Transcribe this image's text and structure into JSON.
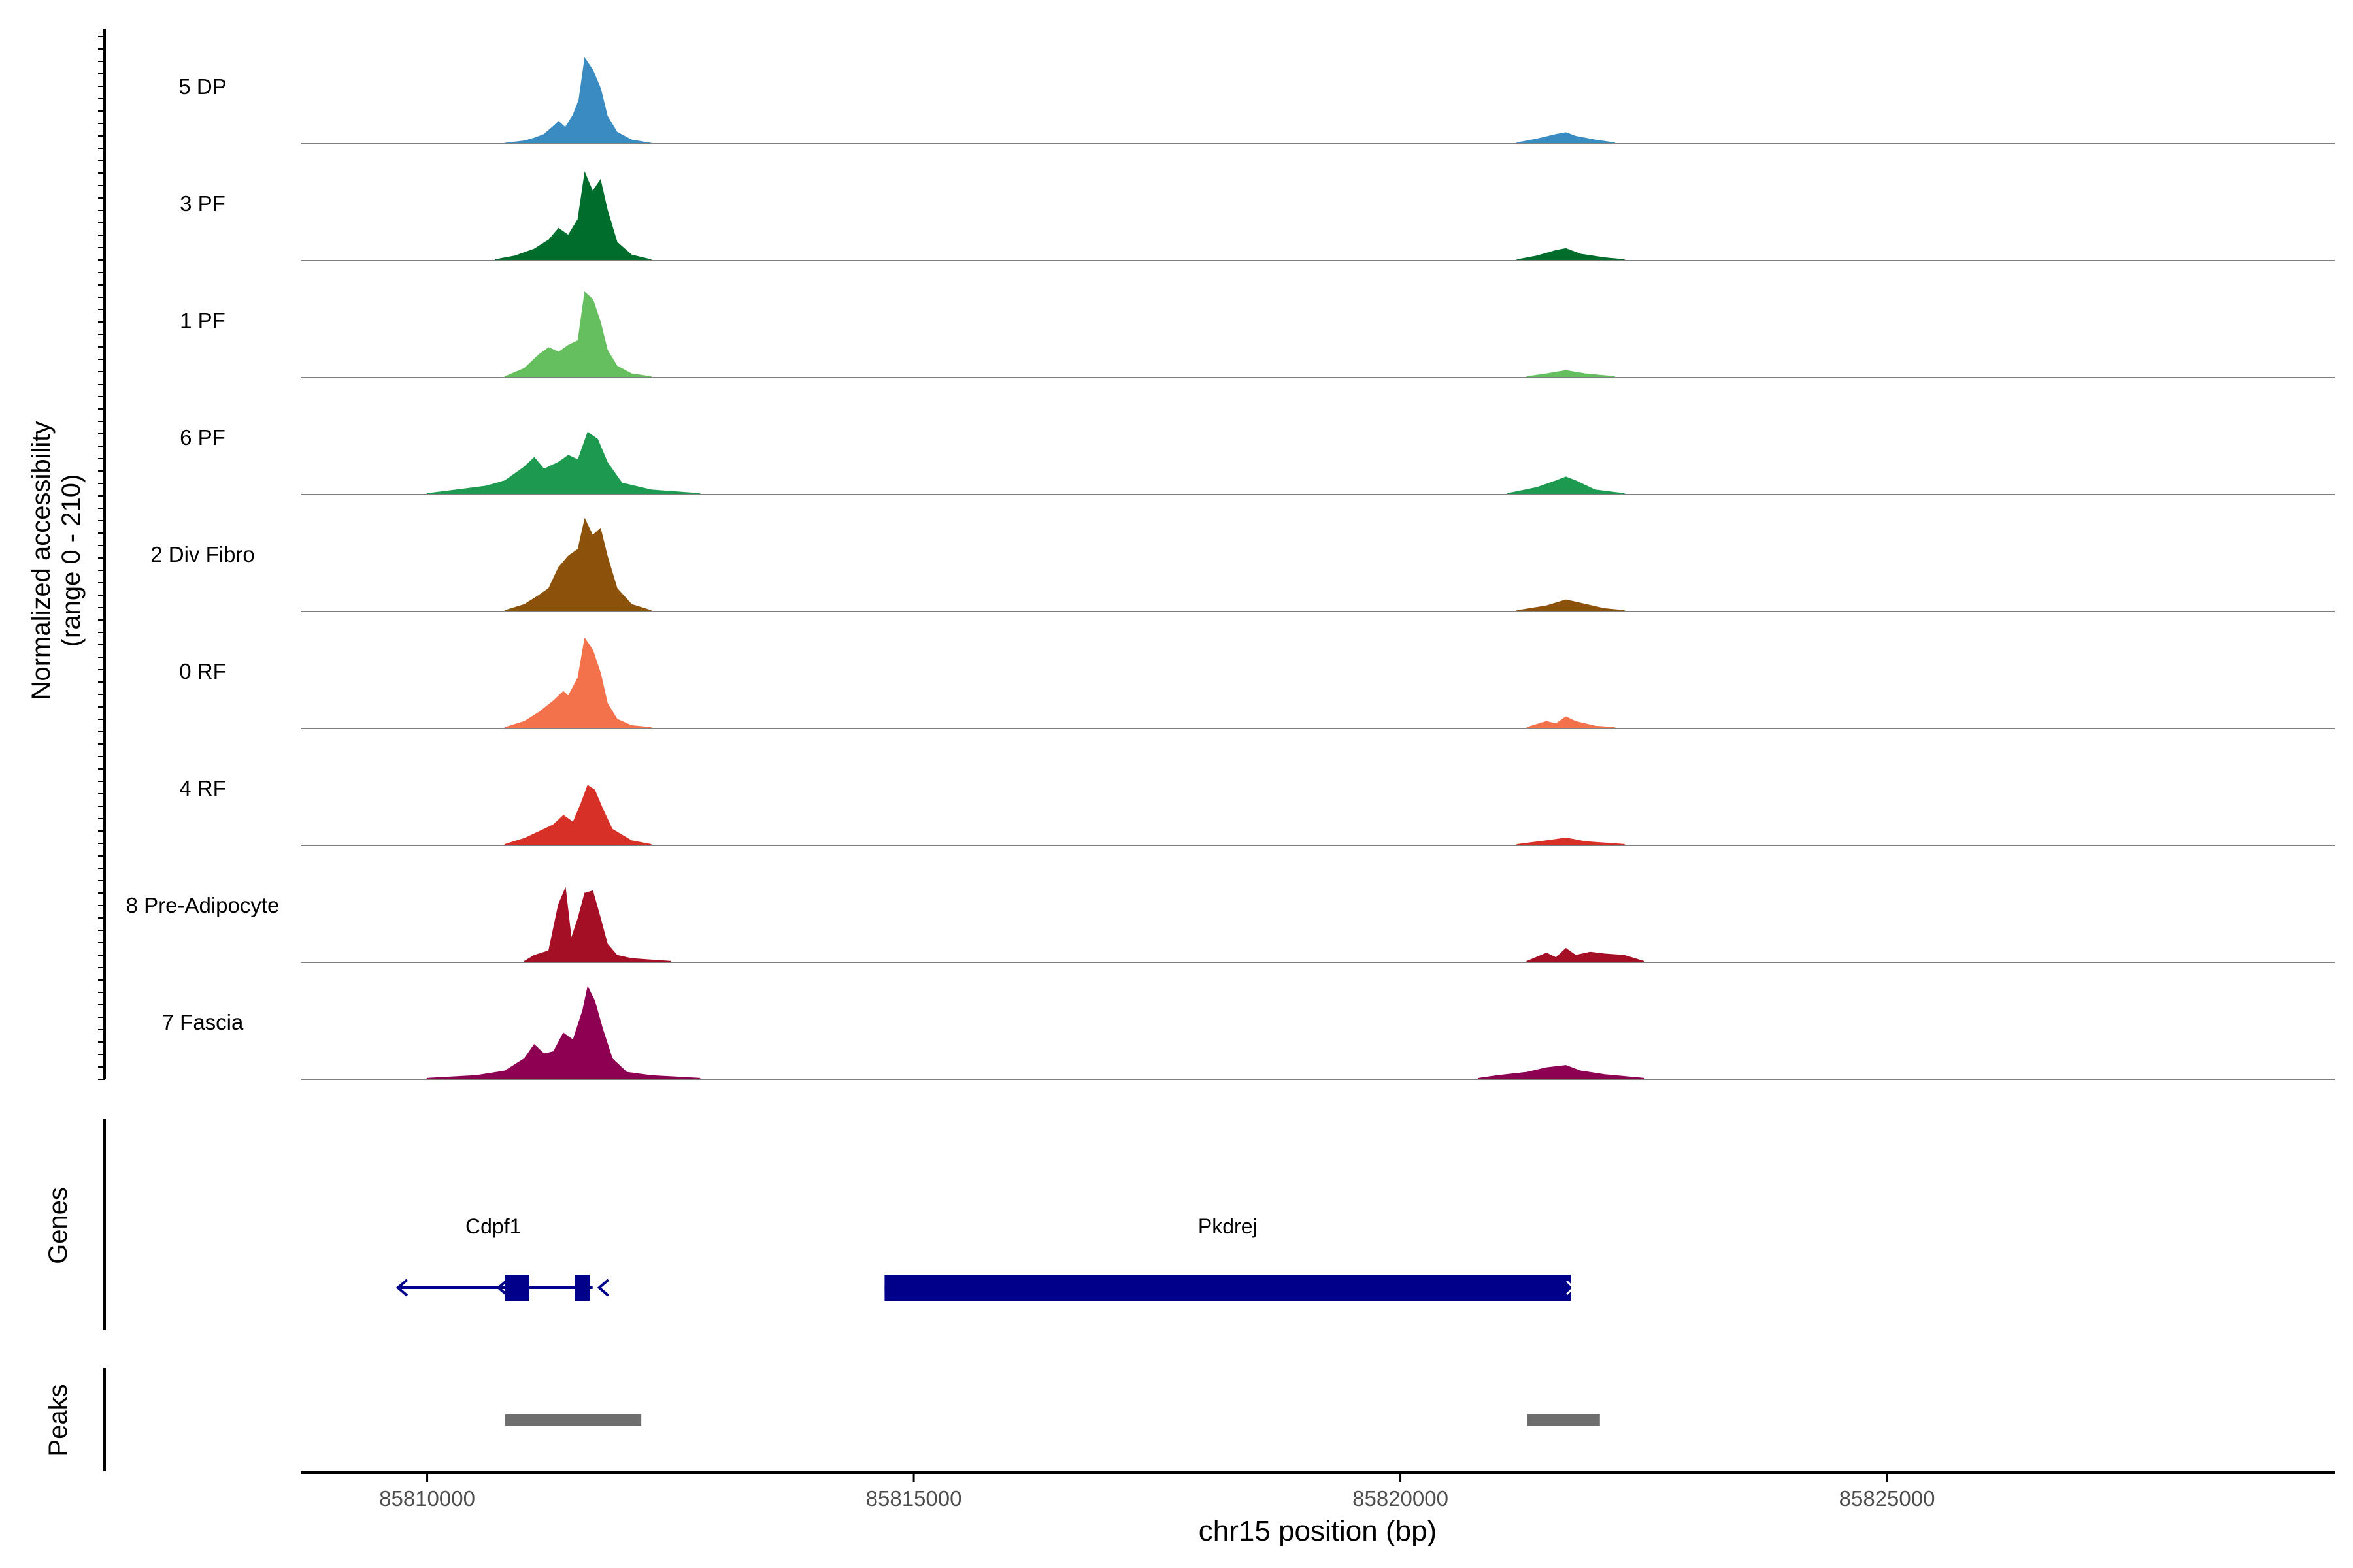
{
  "chart_data": {
    "type": "area",
    "title": "",
    "xlabel": "chr15 position (bp)",
    "ylabel_line1": "Normalized accessibility",
    "ylabel_line2": "(range 0 - 210)",
    "xlim": [
      85808700,
      85829600
    ],
    "ylim": [
      0,
      210
    ],
    "x_ticks": [
      85810000,
      85815000,
      85820000,
      85825000
    ],
    "x_tick_labels": [
      "85810000",
      "85815000",
      "85820000",
      "85825000"
    ],
    "series": [
      {
        "name": "5 DP",
        "color": "#3a8bc2",
        "peaks": [
          {
            "start": 85810800,
            "end": 85812300,
            "points": [
              [
                85810800,
                1
              ],
              [
                85811000,
                6
              ],
              [
                85811100,
                12
              ],
              [
                85811200,
                20
              ],
              [
                85811300,
                38
              ],
              [
                85811350,
                48
              ],
              [
                85811420,
                35
              ],
              [
                85811500,
                62
              ],
              [
                85811560,
                95
              ],
              [
                85811620,
                185
              ],
              [
                85811700,
                160
              ],
              [
                85811780,
                120
              ],
              [
                85811850,
                60
              ],
              [
                85811950,
                25
              ],
              [
                85812100,
                8
              ],
              [
                85812300,
                1
              ]
            ]
          },
          {
            "start": 85821200,
            "end": 85822200,
            "points": [
              [
                85821200,
                2
              ],
              [
                85821400,
                10
              ],
              [
                85821600,
                20
              ],
              [
                85821700,
                24
              ],
              [
                85821800,
                16
              ],
              [
                85822000,
                8
              ],
              [
                85822200,
                2
              ]
            ]
          }
        ]
      },
      {
        "name": "3 PF",
        "color": "#006d2c",
        "peaks": [
          {
            "start": 85810700,
            "end": 85812300,
            "points": [
              [
                85810700,
                2
              ],
              [
                85810900,
                10
              ],
              [
                85811100,
                25
              ],
              [
                85811250,
                45
              ],
              [
                85811350,
                70
              ],
              [
                85811450,
                55
              ],
              [
                85811550,
                90
              ],
              [
                85811620,
                190
              ],
              [
                85811700,
                150
              ],
              [
                85811780,
                175
              ],
              [
                85811850,
                110
              ],
              [
                85811950,
                40
              ],
              [
                85812100,
                12
              ],
              [
                85812300,
                2
              ]
            ]
          },
          {
            "start": 85821200,
            "end": 85822300,
            "points": [
              [
                85821200,
                2
              ],
              [
                85821400,
                10
              ],
              [
                85821600,
                22
              ],
              [
                85821700,
                26
              ],
              [
                85821850,
                14
              ],
              [
                85822100,
                6
              ],
              [
                85822300,
                2
              ]
            ]
          }
        ]
      },
      {
        "name": "1 PF",
        "color": "#66bf5f",
        "peaks": [
          {
            "start": 85810800,
            "end": 85812300,
            "points": [
              [
                85810800,
                2
              ],
              [
                85811000,
                20
              ],
              [
                85811150,
                50
              ],
              [
                85811250,
                65
              ],
              [
                85811350,
                55
              ],
              [
                85811450,
                70
              ],
              [
                85811550,
                80
              ],
              [
                85811620,
                185
              ],
              [
                85811700,
                170
              ],
              [
                85811780,
                120
              ],
              [
                85811850,
                60
              ],
              [
                85811950,
                25
              ],
              [
                85812100,
                8
              ],
              [
                85812300,
                2
              ]
            ]
          },
          {
            "start": 85821300,
            "end": 85822200,
            "points": [
              [
                85821300,
                2
              ],
              [
                85821500,
                8
              ],
              [
                85821700,
                15
              ],
              [
                85821900,
                8
              ],
              [
                85822200,
                2
              ]
            ]
          }
        ]
      },
      {
        "name": "6 PF",
        "color": "#1d9a4f",
        "peaks": [
          {
            "start": 85810000,
            "end": 85812800,
            "points": [
              [
                85810000,
                2
              ],
              [
                85810300,
                10
              ],
              [
                85810600,
                18
              ],
              [
                85810800,
                30
              ],
              [
                85811000,
                60
              ],
              [
                85811100,
                80
              ],
              [
                85811200,
                55
              ],
              [
                85811350,
                70
              ],
              [
                85811450,
                85
              ],
              [
                85811550,
                75
              ],
              [
                85811650,
                135
              ],
              [
                85811750,
                120
              ],
              [
                85811850,
                70
              ],
              [
                85812000,
                25
              ],
              [
                85812300,
                10
              ],
              [
                85812800,
                2
              ]
            ]
          },
          {
            "start": 85821100,
            "end": 85822300,
            "points": [
              [
                85821100,
                2
              ],
              [
                85821400,
                15
              ],
              [
                85821600,
                30
              ],
              [
                85821700,
                38
              ],
              [
                85821800,
                30
              ],
              [
                85822000,
                10
              ],
              [
                85822300,
                2
              ]
            ]
          }
        ]
      },
      {
        "name": "2 Div Fibro",
        "color": "#8c510a",
        "peaks": [
          {
            "start": 85810800,
            "end": 85812300,
            "points": [
              [
                85810800,
                2
              ],
              [
                85811000,
                15
              ],
              [
                85811150,
                35
              ],
              [
                85811250,
                50
              ],
              [
                85811350,
                95
              ],
              [
                85811450,
                120
              ],
              [
                85811550,
                135
              ],
              [
                85811620,
                200
              ],
              [
                85811700,
                165
              ],
              [
                85811780,
                180
              ],
              [
                85811850,
                120
              ],
              [
                85811950,
                50
              ],
              [
                85812100,
                15
              ],
              [
                85812300,
                2
              ]
            ]
          },
          {
            "start": 85821200,
            "end": 85822300,
            "points": [
              [
                85821200,
                2
              ],
              [
                85821500,
                12
              ],
              [
                85821700,
                25
              ],
              [
                85821850,
                18
              ],
              [
                85822100,
                6
              ],
              [
                85822300,
                2
              ]
            ]
          }
        ]
      },
      {
        "name": "0 RF",
        "color": "#f3714b",
        "peaks": [
          {
            "start": 85810800,
            "end": 85812300,
            "points": [
              [
                85810800,
                2
              ],
              [
                85811000,
                15
              ],
              [
                85811150,
                35
              ],
              [
                85811300,
                60
              ],
              [
                85811400,
                80
              ],
              [
                85811450,
                70
              ],
              [
                85811550,
                110
              ],
              [
                85811620,
                195
              ],
              [
                85811700,
                170
              ],
              [
                85811780,
                120
              ],
              [
                85811850,
                55
              ],
              [
                85811950,
                20
              ],
              [
                85812100,
                6
              ],
              [
                85812300,
                2
              ]
            ]
          },
          {
            "start": 85821300,
            "end": 85822200,
            "points": [
              [
                85821300,
                2
              ],
              [
                85821500,
                15
              ],
              [
                85821600,
                10
              ],
              [
                85821700,
                25
              ],
              [
                85821800,
                15
              ],
              [
                85822000,
                5
              ],
              [
                85822200,
                2
              ]
            ]
          }
        ]
      },
      {
        "name": "4 RF",
        "color": "#d73027",
        "peaks": [
          {
            "start": 85810800,
            "end": 85812300,
            "points": [
              [
                85810800,
                2
              ],
              [
                85811000,
                15
              ],
              [
                85811150,
                30
              ],
              [
                85811300,
                45
              ],
              [
                85811400,
                65
              ],
              [
                85811500,
                50
              ],
              [
                85811580,
                90
              ],
              [
                85811650,
                130
              ],
              [
                85811720,
                120
              ],
              [
                85811800,
                80
              ],
              [
                85811900,
                35
              ],
              [
                85812100,
                10
              ],
              [
                85812300,
                2
              ]
            ]
          },
          {
            "start": 85821200,
            "end": 85822300,
            "points": [
              [
                85821200,
                2
              ],
              [
                85821500,
                10
              ],
              [
                85821700,
                16
              ],
              [
                85821900,
                8
              ],
              [
                85822300,
                2
              ]
            ]
          }
        ]
      },
      {
        "name": "8 Pre-Adipocyte",
        "color": "#a50f26",
        "peaks": [
          {
            "start": 85811000,
            "end": 85812500,
            "points": [
              [
                85811000,
                2
              ],
              [
                85811100,
                15
              ],
              [
                85811250,
                25
              ],
              [
                85811350,
                125
              ],
              [
                85811420,
                160
              ],
              [
                85811480,
                50
              ],
              [
                85811550,
                95
              ],
              [
                85811620,
                150
              ],
              [
                85811700,
                155
              ],
              [
                85811780,
                95
              ],
              [
                85811850,
                40
              ],
              [
                85811950,
                15
              ],
              [
                85812100,
                8
              ],
              [
                85812500,
                2
              ]
            ]
          },
          {
            "start": 85821300,
            "end": 85822500,
            "points": [
              [
                85821300,
                2
              ],
              [
                85821500,
                20
              ],
              [
                85821600,
                10
              ],
              [
                85821700,
                30
              ],
              [
                85821800,
                15
              ],
              [
                85821950,
                22
              ],
              [
                85822100,
                18
              ],
              [
                85822300,
                15
              ],
              [
                85822500,
                2
              ]
            ]
          }
        ]
      },
      {
        "name": "7 Fascia",
        "color": "#8e0152",
        "peaks": [
          {
            "start": 85810000,
            "end": 85812800,
            "points": [
              [
                85810000,
                2
              ],
              [
                85810500,
                8
              ],
              [
                85810800,
                18
              ],
              [
                85811000,
                45
              ],
              [
                85811100,
                75
              ],
              [
                85811200,
                55
              ],
              [
                85811300,
                60
              ],
              [
                85811400,
                100
              ],
              [
                85811500,
                85
              ],
              [
                85811600,
                150
              ],
              [
                85811650,
                200
              ],
              [
                85811720,
                170
              ],
              [
                85811800,
                110
              ],
              [
                85811900,
                45
              ],
              [
                85812050,
                15
              ],
              [
                85812300,
                8
              ],
              [
                85812800,
                2
              ]
            ]
          },
          {
            "start": 85820800,
            "end": 85822500,
            "points": [
              [
                85820800,
                2
              ],
              [
                85821000,
                8
              ],
              [
                85821300,
                15
              ],
              [
                85821500,
                25
              ],
              [
                85821700,
                30
              ],
              [
                85821850,
                18
              ],
              [
                85822100,
                10
              ],
              [
                85822500,
                2
              ]
            ]
          }
        ]
      }
    ],
    "genes": {
      "track_label": "Genes",
      "items": [
        {
          "name": "Cdpf1",
          "strand": "-",
          "start": 85809700,
          "end": 85811700,
          "exons": [
            [
              85810800,
              85811050
            ],
            [
              85811520,
              85811670
            ]
          ]
        },
        {
          "name": "Pkdrej",
          "strand": "+",
          "start": 85814700,
          "end": 85821750,
          "exons": [
            [
              85814700,
              85821750
            ]
          ]
        }
      ]
    },
    "peaks": {
      "track_label": "Peaks",
      "regions": [
        [
          85810800,
          85812200
        ],
        [
          85821300,
          85822050
        ]
      ]
    }
  },
  "palette": {
    "axis": "#000000",
    "baseline": "#7f7f7f",
    "gene": "#00008b",
    "peak": "#6e6e6e"
  }
}
